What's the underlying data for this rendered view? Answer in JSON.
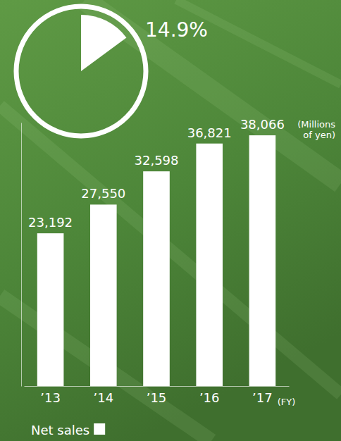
{
  "chart_data": {
    "type": "bar",
    "categories": [
      "’13",
      "’14",
      "’15",
      "’16",
      "’17"
    ],
    "series": [
      {
        "name": "Net sales",
        "color": "#ffffff",
        "values": [
          23192,
          27550,
          32598,
          36821,
          38066
        ]
      }
    ],
    "value_labels": [
      "23,192",
      "27,550",
      "32,598",
      "36,821",
      "38,066"
    ],
    "data_labels": true,
    "y_label": "(Millions of yen)",
    "x_label": "(FY)",
    "ylim": [
      0,
      40000
    ],
    "yticks": [],
    "tick_labels": "x",
    "grid": false,
    "legend": "bottom-left",
    "annotations": [
      {
        "text": "14.9%",
        "value": 14.9
      }
    ]
  }
}
